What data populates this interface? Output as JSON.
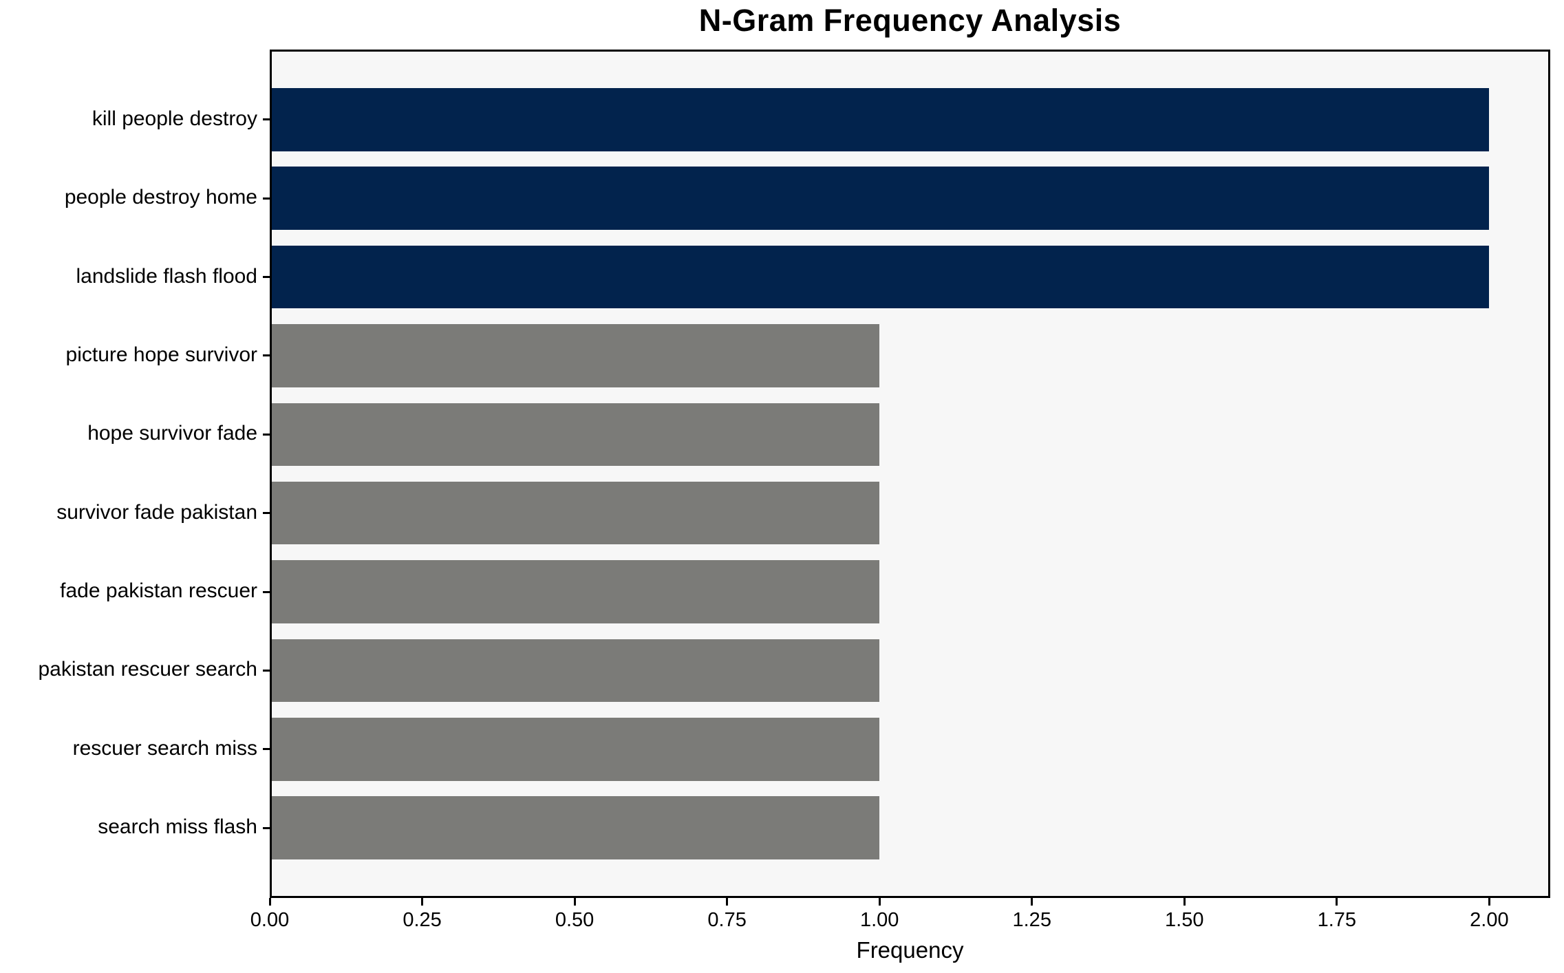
{
  "chart_data": {
    "type": "bar",
    "orientation": "horizontal",
    "title": "N-Gram Frequency Analysis",
    "xlabel": "Frequency",
    "ylabel": "",
    "categories": [
      "kill people destroy",
      "people destroy home",
      "landslide flash flood",
      "picture hope survivor",
      "hope survivor fade",
      "survivor fade pakistan",
      "fade pakistan rescuer",
      "pakistan rescuer search",
      "rescuer search miss",
      "search miss flash"
    ],
    "values": [
      2,
      2,
      2,
      1,
      1,
      1,
      1,
      1,
      1,
      1
    ],
    "bar_colors": [
      "#02234d",
      "#02234d",
      "#02234d",
      "#7b7b78",
      "#7b7b78",
      "#7b7b78",
      "#7b7b78",
      "#7b7b78",
      "#7b7b78",
      "#7b7b78"
    ],
    "xlim": [
      0,
      2.1
    ],
    "xticks": [
      0,
      0.25,
      0.5,
      0.75,
      1.0,
      1.25,
      1.5,
      1.75,
      2.0
    ],
    "xtick_labels": [
      "0.00",
      "0.25",
      "0.50",
      "0.75",
      "1.00",
      "1.25",
      "1.50",
      "1.75",
      "2.00"
    ],
    "grid": false,
    "legend": "none",
    "bar_height_fraction": 0.8,
    "colors": {
      "highlight_bar": "#02234d",
      "default_bar": "#7b7b78",
      "plot_background": "#f7f7f7",
      "figure_background": "#ffffff",
      "spine": "#000000",
      "text": "#000000"
    }
  }
}
